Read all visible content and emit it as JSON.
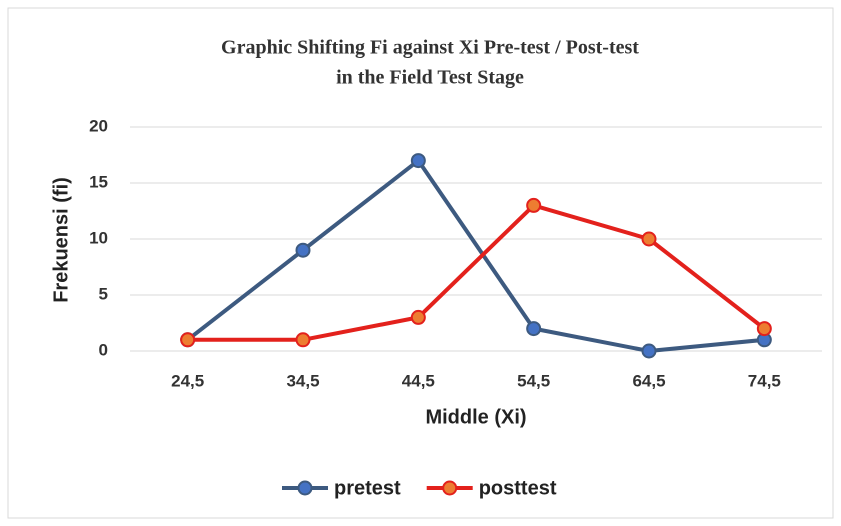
{
  "chart_data": {
    "type": "line",
    "title": [
      "Graphic Shifting Fi against Xi Pre-test / Post-test",
      "in the Field Test Stage"
    ],
    "x_label": "Middle (Xi)",
    "y_label": "Frekuensi  (fi)",
    "categories": [
      "24,5",
      "34,5",
      "44,5",
      "54,5",
      "64,5",
      "74,5"
    ],
    "series": [
      {
        "name": "pretest",
        "color": "#3d5a80",
        "marker_color": "#4472c4",
        "values": [
          1,
          9,
          17,
          2,
          0,
          1
        ]
      },
      {
        "name": "posttest",
        "color": "#e3211c",
        "marker_color": "#ed7d31",
        "values": [
          1,
          1,
          3,
          13,
          10,
          2
        ]
      }
    ],
    "ylim": [
      0,
      20
    ],
    "yticks": [
      0,
      5,
      10,
      15,
      20
    ],
    "grid": true,
    "legend": "bottom"
  }
}
